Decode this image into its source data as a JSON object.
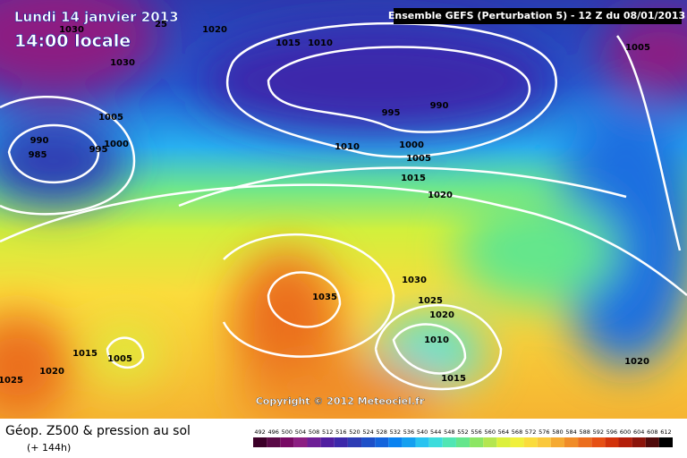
{
  "header": {
    "date": "Lundi 14 janvier 2013",
    "time": "14:00 locale",
    "run": "Ensemble GEFS (Perturbation 5)  -  12 Z du 08/01/2013"
  },
  "copyright": "Copyright © 2012 Meteociel.fr",
  "footer": {
    "title": "Géop. Z500 & pression au sol",
    "lead": "(+ 144h)"
  },
  "isobar_labels": [
    "25",
    "1030",
    "1020",
    "1015",
    "1010",
    "1005",
    "1030",
    "995",
    "990",
    "1005",
    "990",
    "995",
    "1000",
    "985",
    "1010",
    "1000",
    "1005",
    "1015",
    "1020",
    "1035",
    "1030",
    "1025",
    "1020",
    "1010",
    "1015",
    "1005",
    "1020",
    "1015",
    "1025",
    "1020"
  ],
  "scale": {
    "values": [
      492,
      496,
      500,
      504,
      508,
      512,
      516,
      520,
      524,
      528,
      532,
      536,
      540,
      544,
      548,
      552,
      556,
      560,
      564,
      568,
      572,
      576,
      580,
      584,
      588,
      592,
      596,
      600,
      604,
      608,
      612
    ],
    "colors": [
      "#3c0028",
      "#5a0a46",
      "#780a64",
      "#8c1e82",
      "#6e1e96",
      "#501ea0",
      "#3c28aa",
      "#2d3cb4",
      "#1e50c8",
      "#1464dc",
      "#0a82f0",
      "#14a0f0",
      "#28c3f0",
      "#3cdcdc",
      "#50e6b4",
      "#64e68c",
      "#8ce664",
      "#b4e650",
      "#dcf03c",
      "#f0f03c",
      "#fadc3c",
      "#fac83c",
      "#f5aa32",
      "#f08c28",
      "#eb6e1e",
      "#e65014",
      "#d2320a",
      "#b41e0a",
      "#8c140a",
      "#500a0a",
      "#000000"
    ]
  }
}
